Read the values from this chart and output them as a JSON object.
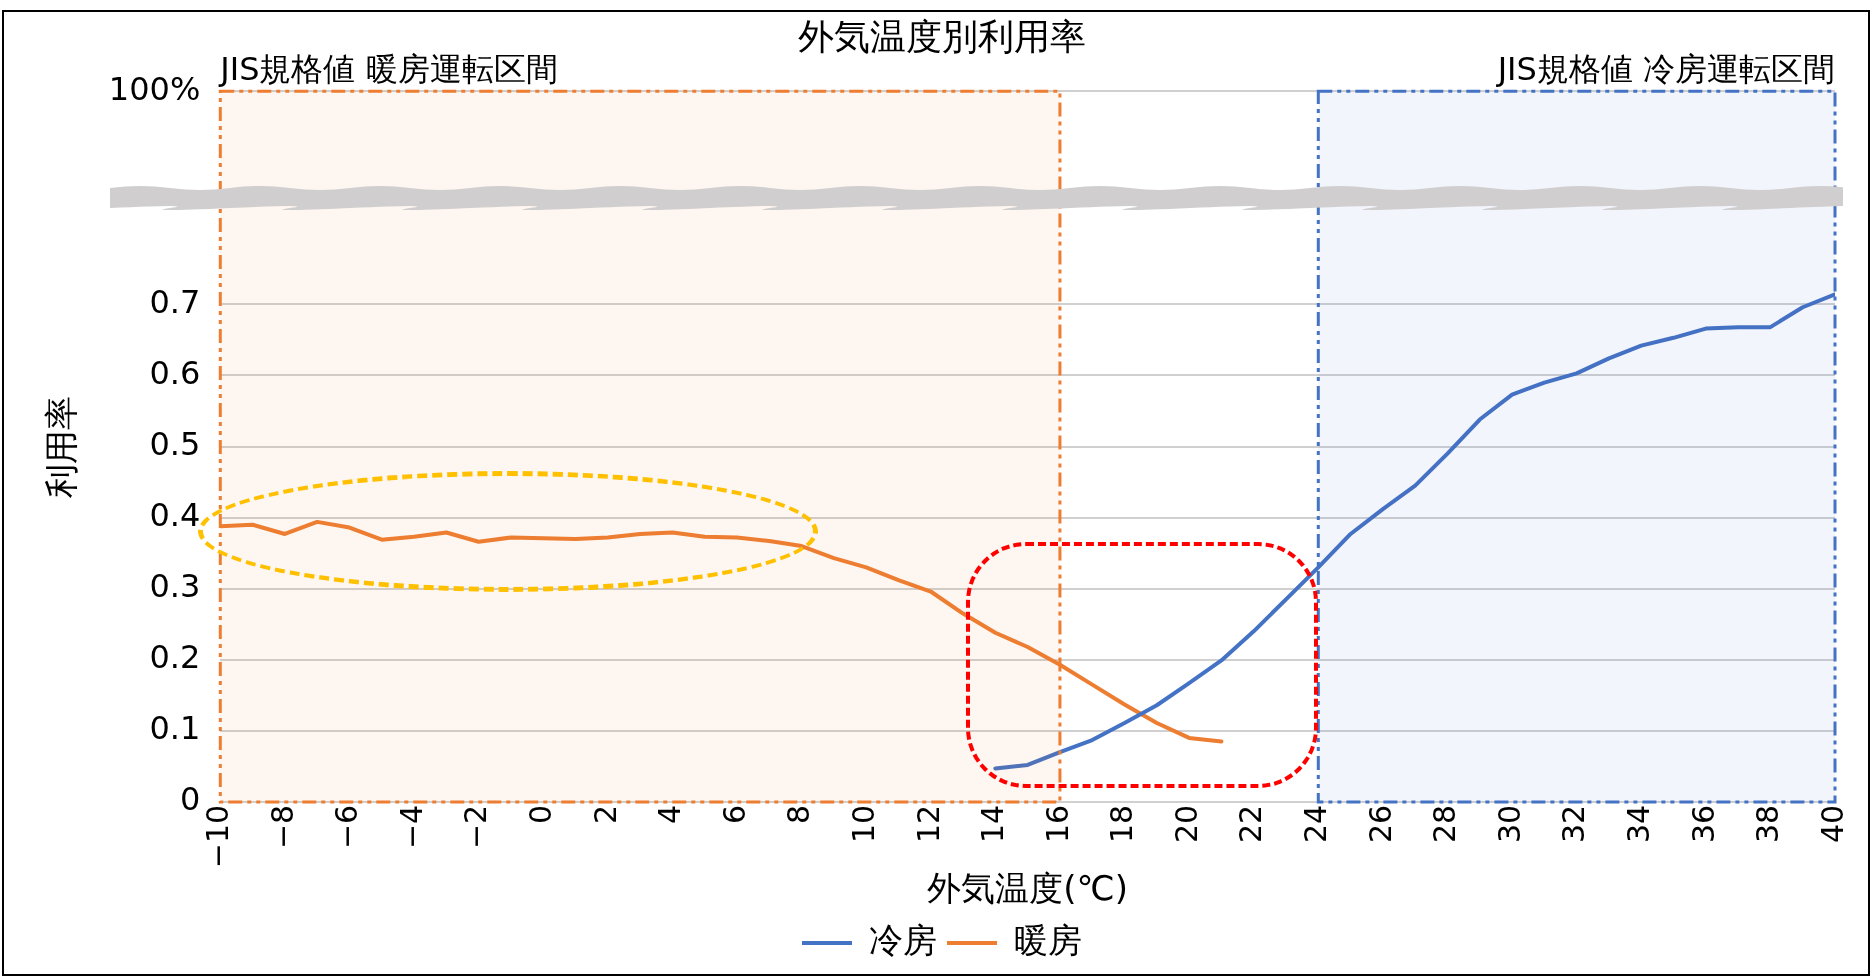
{
  "chart_data": {
    "type": "line",
    "title": "外気温度別利用率",
    "xlabel": "外気温度(℃)",
    "ylabel": "利用率",
    "series": [
      {
        "name": "冷房",
        "color": "#4472c4",
        "x": [
          14,
          15,
          16,
          17,
          18,
          19,
          20,
          21,
          22,
          23,
          24,
          25,
          26,
          27,
          28,
          29,
          30,
          31,
          32,
          33,
          34,
          35,
          36,
          37,
          38,
          39,
          40
        ],
        "values": [
          0.047,
          0.052,
          0.07,
          0.087,
          0.111,
          0.136,
          0.167,
          0.199,
          0.24,
          0.285,
          0.33,
          0.377,
          0.412,
          0.445,
          0.49,
          0.538,
          0.573,
          0.59,
          0.603,
          0.624,
          0.642,
          0.653,
          0.666,
          0.668,
          0.668,
          0.696,
          0.714
        ]
      },
      {
        "name": "暖房",
        "color": "#ed7d31",
        "x": [
          -10,
          -9,
          -8,
          -7,
          -6,
          -5,
          -4,
          -3,
          -2,
          -1,
          0,
          1,
          2,
          3,
          4,
          5,
          6,
          7,
          8,
          9,
          10,
          11,
          12,
          13,
          14,
          15,
          16,
          17,
          18,
          19,
          20,
          21
        ],
        "values": [
          0.388,
          0.39,
          0.377,
          0.394,
          0.386,
          0.369,
          0.373,
          0.379,
          0.366,
          0.372,
          0.371,
          0.37,
          0.372,
          0.377,
          0.379,
          0.373,
          0.372,
          0.367,
          0.36,
          0.343,
          0.33,
          0.312,
          0.296,
          0.265,
          0.238,
          0.218,
          0.193,
          0.165,
          0.137,
          0.111,
          0.09,
          0.085
        ]
      }
    ],
    "xlim": [
      -10,
      40
    ],
    "xticks": [
      {
        "value": -10,
        "label": "−10"
      },
      {
        "value": -8,
        "label": "−8"
      },
      {
        "value": -6,
        "label": "−6"
      },
      {
        "value": -4,
        "label": "−4"
      },
      {
        "value": -2,
        "label": "−2"
      },
      0,
      2,
      4,
      6,
      8,
      10,
      12,
      14,
      16,
      18,
      20,
      22,
      24,
      26,
      28,
      30,
      32,
      34,
      36,
      38,
      40
    ],
    "ylim": [
      0,
      1
    ],
    "yticks": [
      0,
      0.1,
      0.2,
      0.3,
      0.4,
      0.5,
      0.6,
      0.7,
      {
        "value": 1,
        "label": "100%"
      }
    ],
    "bands": [
      {
        "axis": "x",
        "from": -10,
        "to": 16,
        "label": "JIS規格値 暖房運転区間",
        "color": "#ed7d31"
      },
      {
        "axis": "x",
        "from": 24,
        "to": 40,
        "label": "JIS規格値 冷房運転区間",
        "color": "#4472c4"
      }
    ],
    "grid": "y",
    "legend": "bottom",
    "marker": "none",
    "line_style": "solid"
  }
}
